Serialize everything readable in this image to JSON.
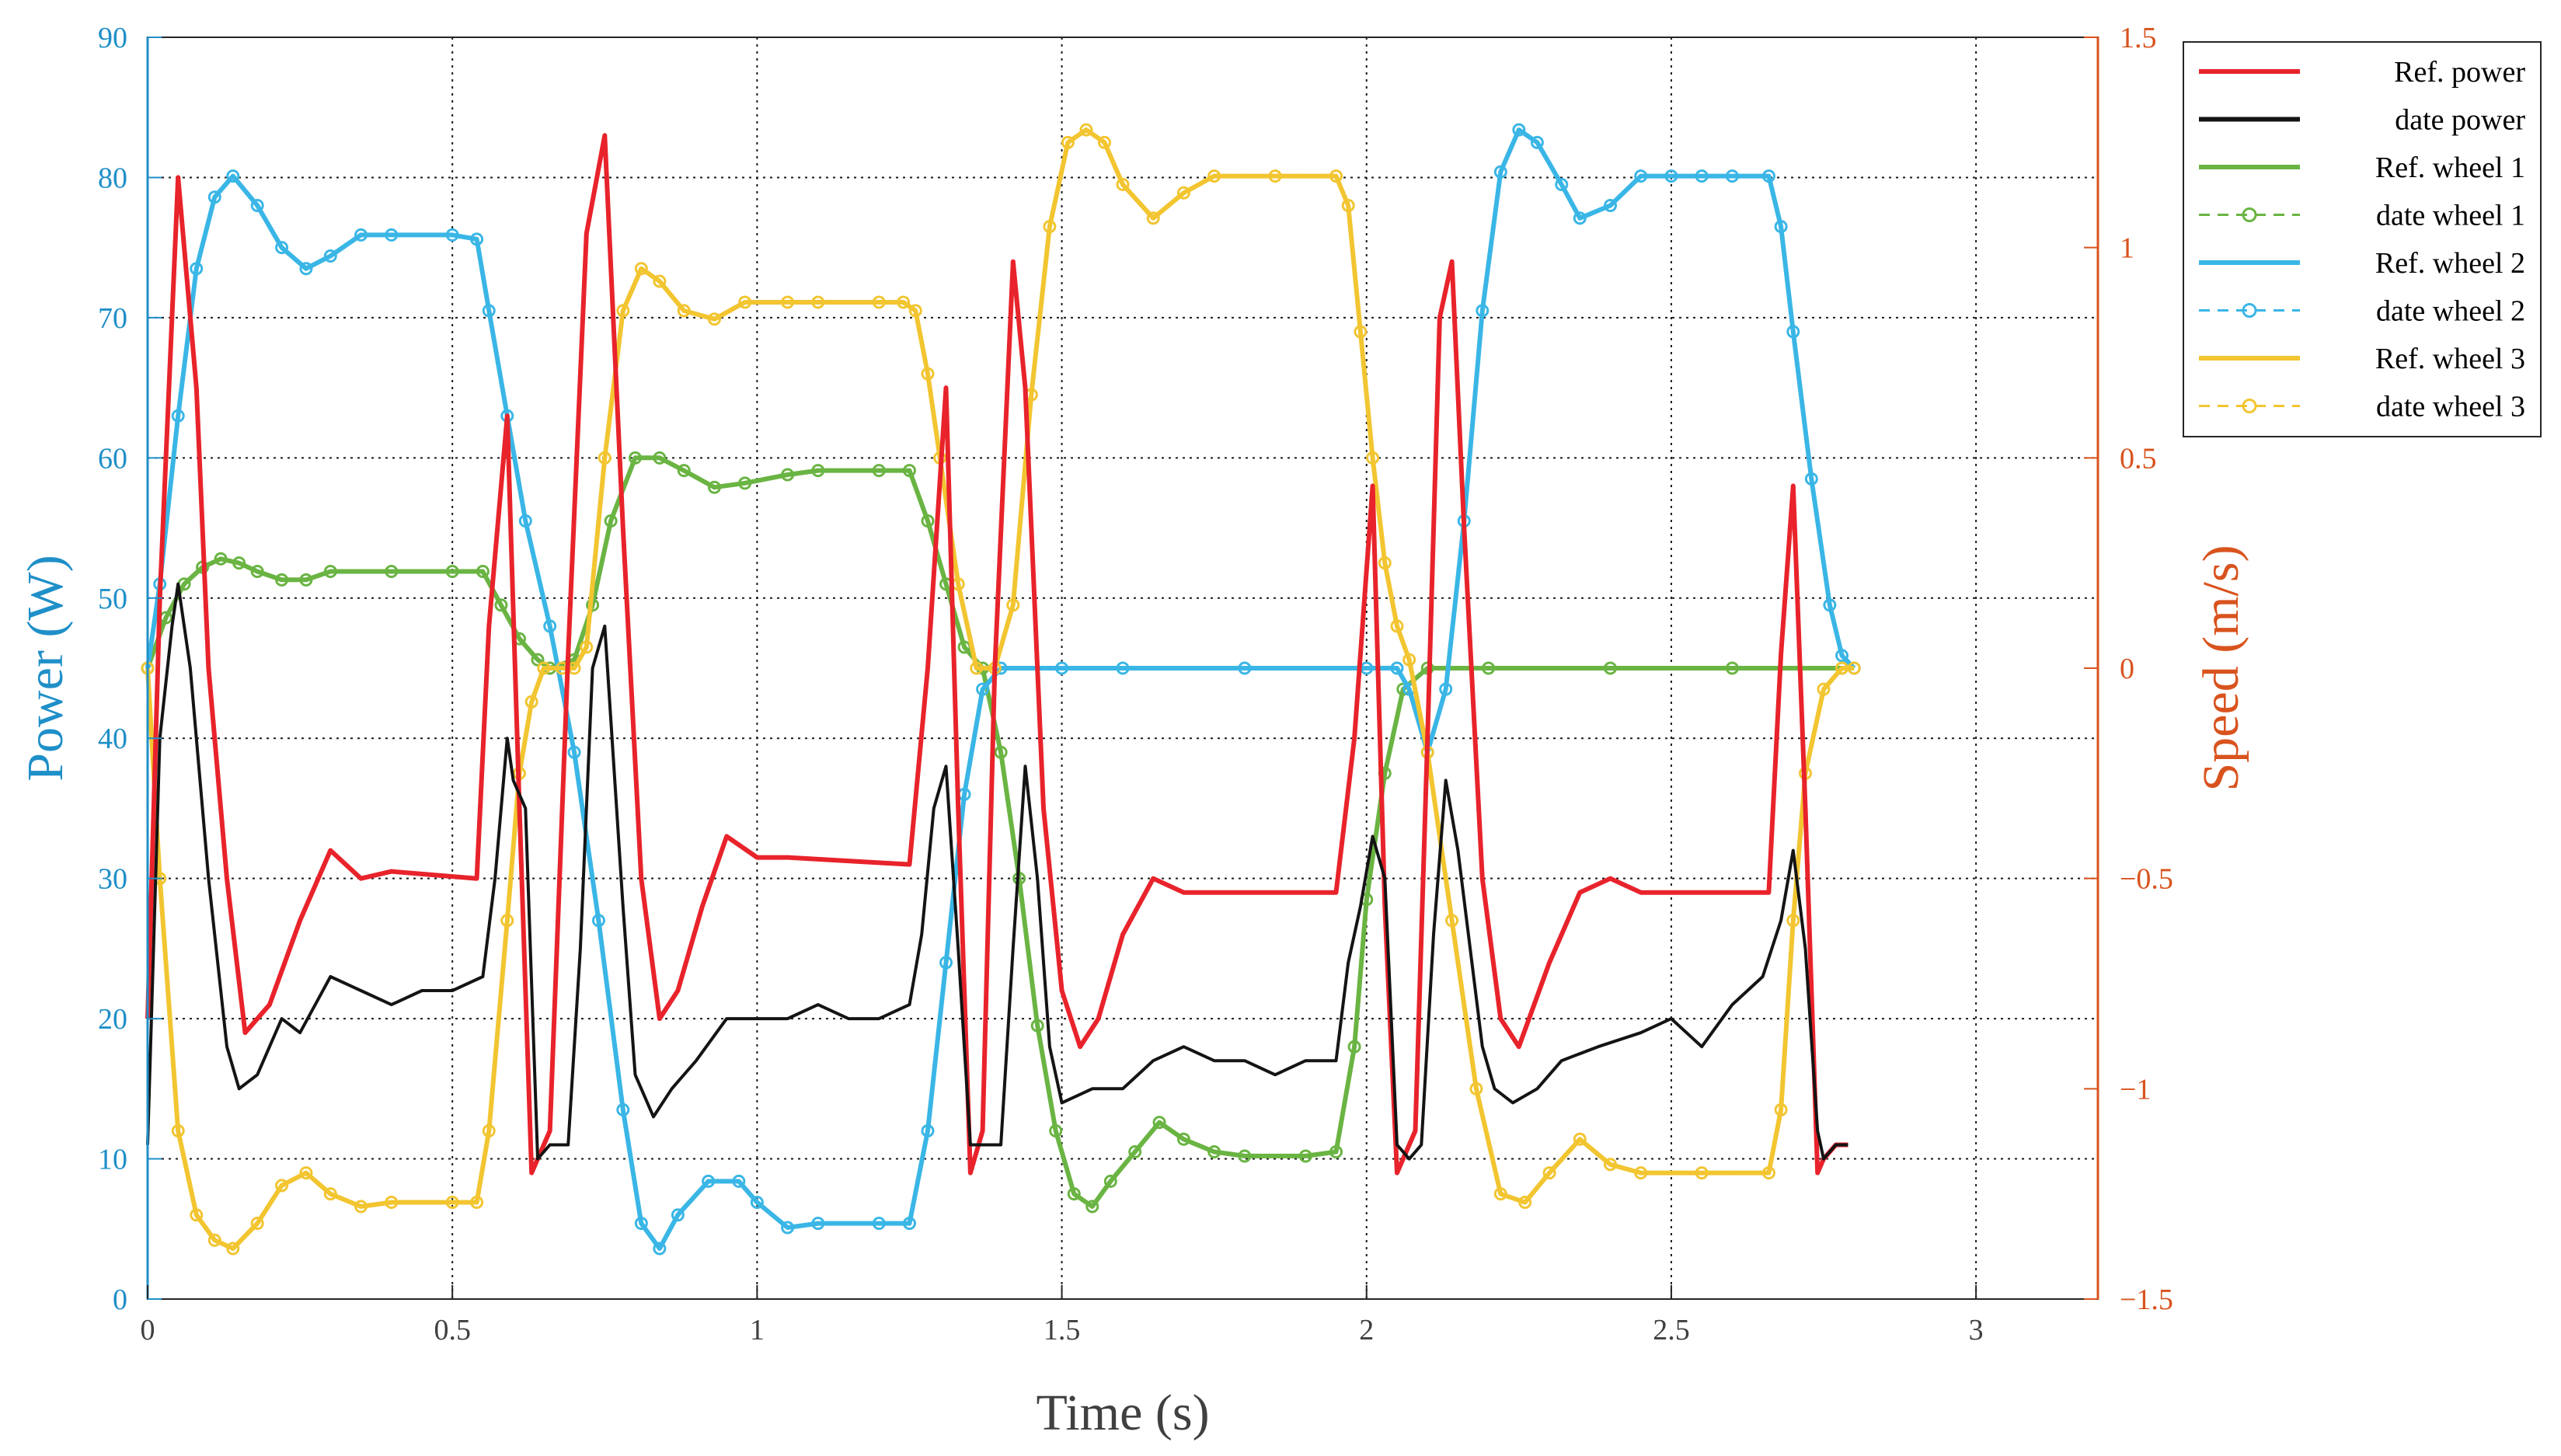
{
  "chart_data": {
    "type": "line",
    "xlabel": "Time (s)",
    "ylabel_left": "Power (W)",
    "ylabel_right": "Speed (m/s)",
    "xlim": [
      0,
      3.2
    ],
    "ylim_left": [
      0,
      90
    ],
    "ylim_right": [
      -1.5,
      1.5
    ],
    "x_ticks": [
      0,
      0.5,
      1,
      1.5,
      2,
      2.5,
      3
    ],
    "x_tick_labels": [
      "0",
      "0.5",
      "1",
      "1.5",
      "2",
      "2.5",
      "3"
    ],
    "y_left_ticks": [
      0,
      10,
      20,
      30,
      40,
      50,
      60,
      70,
      80,
      90
    ],
    "y_left_tick_labels": [
      "0",
      "10",
      "20",
      "30",
      "40",
      "50",
      "60",
      "70",
      "80",
      "90"
    ],
    "y_right_ticks": [
      -1.5,
      -1,
      -0.5,
      0,
      0.5,
      1,
      1.5
    ],
    "y_right_tick_labels": [
      "−1.5",
      "−1",
      "−0.5",
      "0",
      "0.5",
      "1",
      "1.5"
    ],
    "grid": true,
    "legend_position": "top-right",
    "colors": {
      "left_axis": "#1f8fc8",
      "right_axis": "#d9531e",
      "ref_power": "#e8232b",
      "date_power": "#141414",
      "wheel1": "#6ab443",
      "wheel2": "#3ab6e6",
      "wheel3": "#f2c531",
      "grid": "#1a1a1a"
    },
    "series": [
      {
        "name": "Ref. power",
        "axis": "left",
        "style": "solid",
        "color_key": "ref_power",
        "x": [
          0,
          0.02,
          0.05,
          0.08,
          0.1,
          0.13,
          0.16,
          0.2,
          0.25,
          0.3,
          0.35,
          0.4,
          0.54,
          0.56,
          0.59,
          0.61,
          0.63,
          0.66,
          0.69,
          0.72,
          0.75,
          0.78,
          0.81,
          0.84,
          0.87,
          0.91,
          0.95,
          1.0,
          1.05,
          1.25,
          1.28,
          1.31,
          1.33,
          1.35,
          1.37,
          1.39,
          1.42,
          1.44,
          1.47,
          1.5,
          1.53,
          1.56,
          1.6,
          1.65,
          1.7,
          1.77,
          1.95,
          1.98,
          2.01,
          2.03,
          2.05,
          2.06,
          2.08,
          2.1,
          2.12,
          2.14,
          2.16,
          2.19,
          2.22,
          2.25,
          2.3,
          2.35,
          2.4,
          2.45,
          2.5,
          2.66,
          2.68,
          2.7,
          2.72,
          2.74,
          2.75,
          2.77,
          2.79
        ],
        "y": [
          20,
          50,
          80,
          65,
          45,
          30,
          19,
          21,
          27,
          32,
          30,
          30.5,
          30,
          48,
          63,
          35,
          9,
          12,
          46,
          76,
          83,
          55,
          30,
          20,
          22,
          28,
          33,
          31.5,
          31.5,
          31,
          45,
          65,
          35,
          9,
          12,
          45,
          74,
          65,
          35,
          22,
          18,
          20,
          26,
          30,
          29,
          29,
          29,
          40,
          58,
          28,
          9,
          10,
          12,
          40,
          70,
          74,
          55,
          30,
          20,
          18,
          24,
          29,
          30,
          29,
          29,
          29,
          46,
          58,
          35,
          9,
          10,
          11,
          11
        ]
      },
      {
        "name": "date power",
        "axis": "left",
        "style": "solid",
        "color_key": "date_power",
        "x": [
          0,
          0.02,
          0.04,
          0.05,
          0.07,
          0.1,
          0.13,
          0.15,
          0.18,
          0.22,
          0.25,
          0.3,
          0.35,
          0.4,
          0.45,
          0.5,
          0.55,
          0.57,
          0.59,
          0.6,
          0.62,
          0.64,
          0.66,
          0.69,
          0.71,
          0.73,
          0.75,
          0.78,
          0.8,
          0.83,
          0.86,
          0.9,
          0.95,
          1.0,
          1.05,
          1.1,
          1.15,
          1.2,
          1.25,
          1.27,
          1.29,
          1.31,
          1.33,
          1.35,
          1.4,
          1.42,
          1.44,
          1.46,
          1.48,
          1.5,
          1.55,
          1.6,
          1.65,
          1.7,
          1.75,
          1.8,
          1.85,
          1.9,
          1.95,
          1.97,
          1.99,
          2.01,
          2.03,
          2.05,
          2.07,
          2.09,
          2.11,
          2.13,
          2.15,
          2.17,
          2.19,
          2.21,
          2.24,
          2.28,
          2.32,
          2.38,
          2.45,
          2.5,
          2.55,
          2.6,
          2.65,
          2.68,
          2.7,
          2.72,
          2.74,
          2.75,
          2.77,
          2.79
        ],
        "y": [
          11,
          40,
          48,
          51,
          45,
          30,
          18,
          15,
          16,
          20,
          19,
          23,
          22,
          21,
          22,
          22,
          23,
          30,
          40,
          37,
          35,
          10,
          11,
          11,
          25,
          45,
          48,
          28,
          16,
          13,
          15,
          17,
          20,
          20,
          20,
          21,
          20,
          20,
          21,
          26,
          35,
          38,
          25,
          11,
          11,
          25,
          38,
          30,
          18,
          14,
          15,
          15,
          17,
          18,
          17,
          17,
          16,
          17,
          17,
          24,
          28,
          33,
          30,
          11,
          10,
          11,
          26,
          37,
          32,
          25,
          18,
          15,
          14,
          15,
          17,
          18,
          19,
          20,
          18,
          21,
          23,
          27,
          32,
          25,
          12,
          10,
          11,
          11
        ]
      },
      {
        "name": "Ref. wheel 1",
        "axis": "right",
        "style": "solid",
        "color_key": "wheel1",
        "x": [
          0,
          0.03,
          0.06,
          0.09,
          0.12,
          0.15,
          0.18,
          0.22,
          0.26,
          0.3,
          0.4,
          0.5,
          0.55,
          0.58,
          0.61,
          0.64,
          0.66,
          0.7,
          0.73,
          0.76,
          0.8,
          0.84,
          0.88,
          0.93,
          0.98,
          1.05,
          1.1,
          1.2,
          1.25,
          1.28,
          1.31,
          1.34,
          1.37,
          1.4,
          1.43,
          1.46,
          1.49,
          1.52,
          1.55,
          1.58,
          1.62,
          1.66,
          1.7,
          1.75,
          1.8,
          1.9,
          1.95,
          1.98,
          2.0,
          2.03,
          2.06,
          2.1,
          2.2,
          2.4,
          2.6,
          2.78
        ],
        "y": [
          0.0,
          0.12,
          0.2,
          0.24,
          0.26,
          0.25,
          0.23,
          0.21,
          0.21,
          0.23,
          0.23,
          0.23,
          0.23,
          0.15,
          0.07,
          0.02,
          0.0,
          0.02,
          0.15,
          0.35,
          0.5,
          0.5,
          0.47,
          0.43,
          0.44,
          0.46,
          0.47,
          0.47,
          0.47,
          0.35,
          0.2,
          0.05,
          0.0,
          -0.2,
          -0.5,
          -0.85,
          -1.1,
          -1.25,
          -1.28,
          -1.22,
          -1.15,
          -1.08,
          -1.12,
          -1.15,
          -1.16,
          -1.16,
          -1.15,
          -0.9,
          -0.55,
          -0.25,
          -0.05,
          0.0,
          0.0,
          0.0,
          0.0,
          0.0
        ]
      },
      {
        "name": "date wheel 1",
        "axis": "right",
        "style": "dashed-circle",
        "color_key": "wheel1",
        "x": [
          0,
          0.03,
          0.06,
          0.09,
          0.12,
          0.15,
          0.18,
          0.22,
          0.26,
          0.3,
          0.4,
          0.5,
          0.55,
          0.58,
          0.61,
          0.64,
          0.66,
          0.7,
          0.73,
          0.76,
          0.8,
          0.84,
          0.88,
          0.93,
          0.98,
          1.05,
          1.1,
          1.2,
          1.25,
          1.28,
          1.31,
          1.34,
          1.37,
          1.4,
          1.43,
          1.46,
          1.49,
          1.52,
          1.55,
          1.58,
          1.62,
          1.66,
          1.7,
          1.75,
          1.8,
          1.9,
          1.95,
          1.98,
          2.0,
          2.03,
          2.06,
          2.1,
          2.2,
          2.4,
          2.6,
          2.78
        ],
        "y": [
          0.0,
          0.12,
          0.2,
          0.24,
          0.26,
          0.25,
          0.23,
          0.21,
          0.21,
          0.23,
          0.23,
          0.23,
          0.23,
          0.15,
          0.07,
          0.02,
          0.0,
          0.02,
          0.15,
          0.35,
          0.5,
          0.5,
          0.47,
          0.43,
          0.44,
          0.46,
          0.47,
          0.47,
          0.47,
          0.35,
          0.2,
          0.05,
          0.0,
          -0.2,
          -0.5,
          -0.85,
          -1.1,
          -1.25,
          -1.28,
          -1.22,
          -1.15,
          -1.08,
          -1.12,
          -1.15,
          -1.16,
          -1.16,
          -1.15,
          -0.9,
          -0.55,
          -0.25,
          -0.05,
          0.0,
          0.0,
          0.0,
          0.0,
          0.0
        ]
      },
      {
        "name": "Ref. wheel 2",
        "axis": "right",
        "style": "solid",
        "color_key": "wheel2",
        "x": [
          0,
          0.02,
          0.05,
          0.08,
          0.11,
          0.14,
          0.18,
          0.22,
          0.26,
          0.3,
          0.35,
          0.4,
          0.5,
          0.54,
          0.56,
          0.59,
          0.62,
          0.66,
          0.7,
          0.74,
          0.78,
          0.81,
          0.84,
          0.87,
          0.92,
          0.97,
          1.0,
          1.05,
          1.1,
          1.2,
          1.25,
          1.28,
          1.31,
          1.34,
          1.37,
          1.4,
          1.5,
          1.6,
          1.8,
          2.0,
          2.05,
          2.07,
          2.1,
          2.13,
          2.16,
          2.19,
          2.22,
          2.25,
          2.28,
          2.32,
          2.35,
          2.4,
          2.45,
          2.5,
          2.55,
          2.6,
          2.66,
          2.68,
          2.7,
          2.73,
          2.76,
          2.78,
          2.8
        ],
        "y": [
          0.0,
          0.2,
          0.6,
          0.95,
          1.12,
          1.17,
          1.1,
          1.0,
          0.95,
          0.98,
          1.03,
          1.03,
          1.03,
          1.02,
          0.85,
          0.6,
          0.35,
          0.1,
          -0.2,
          -0.6,
          -1.05,
          -1.32,
          -1.38,
          -1.3,
          -1.22,
          -1.22,
          -1.27,
          -1.33,
          -1.32,
          -1.32,
          -1.32,
          -1.1,
          -0.7,
          -0.3,
          -0.05,
          0.0,
          0.0,
          0.0,
          0.0,
          0.0,
          0.0,
          -0.05,
          -0.2,
          -0.05,
          0.35,
          0.85,
          1.18,
          1.28,
          1.25,
          1.15,
          1.07,
          1.1,
          1.17,
          1.17,
          1.17,
          1.17,
          1.17,
          1.05,
          0.8,
          0.45,
          0.15,
          0.03,
          0.0
        ]
      },
      {
        "name": "date wheel 2",
        "axis": "right",
        "style": "dashed-circle",
        "color_key": "wheel2",
        "x": [
          0,
          0.02,
          0.05,
          0.08,
          0.11,
          0.14,
          0.18,
          0.22,
          0.26,
          0.3,
          0.35,
          0.4,
          0.5,
          0.54,
          0.56,
          0.59,
          0.62,
          0.66,
          0.7,
          0.74,
          0.78,
          0.81,
          0.84,
          0.87,
          0.92,
          0.97,
          1.0,
          1.05,
          1.1,
          1.2,
          1.25,
          1.28,
          1.31,
          1.34,
          1.37,
          1.4,
          1.5,
          1.6,
          1.8,
          2.0,
          2.05,
          2.07,
          2.1,
          2.13,
          2.16,
          2.19,
          2.22,
          2.25,
          2.28,
          2.32,
          2.35,
          2.4,
          2.45,
          2.5,
          2.55,
          2.6,
          2.66,
          2.68,
          2.7,
          2.73,
          2.76,
          2.78,
          2.8
        ],
        "y": [
          0.0,
          0.2,
          0.6,
          0.95,
          1.12,
          1.17,
          1.1,
          1.0,
          0.95,
          0.98,
          1.03,
          1.03,
          1.03,
          1.02,
          0.85,
          0.6,
          0.35,
          0.1,
          -0.2,
          -0.6,
          -1.05,
          -1.32,
          -1.38,
          -1.3,
          -1.22,
          -1.22,
          -1.27,
          -1.33,
          -1.32,
          -1.32,
          -1.32,
          -1.1,
          -0.7,
          -0.3,
          -0.05,
          0.0,
          0.0,
          0.0,
          0.0,
          0.0,
          0.0,
          -0.05,
          -0.2,
          -0.05,
          0.35,
          0.85,
          1.18,
          1.28,
          1.25,
          1.15,
          1.07,
          1.1,
          1.17,
          1.17,
          1.17,
          1.17,
          1.17,
          1.05,
          0.8,
          0.45,
          0.15,
          0.03,
          0.0
        ]
      },
      {
        "name": "Ref. wheel 3",
        "axis": "right",
        "style": "solid",
        "color_key": "wheel3",
        "x": [
          0,
          0.02,
          0.05,
          0.08,
          0.11,
          0.14,
          0.18,
          0.22,
          0.26,
          0.3,
          0.35,
          0.4,
          0.5,
          0.54,
          0.56,
          0.59,
          0.61,
          0.63,
          0.65,
          0.68,
          0.7,
          0.72,
          0.75,
          0.78,
          0.81,
          0.84,
          0.88,
          0.93,
          0.98,
          1.05,
          1.1,
          1.2,
          1.24,
          1.26,
          1.28,
          1.3,
          1.33,
          1.36,
          1.39,
          1.42,
          1.45,
          1.48,
          1.51,
          1.54,
          1.57,
          1.6,
          1.65,
          1.7,
          1.75,
          1.85,
          1.95,
          1.97,
          1.99,
          2.01,
          2.03,
          2.05,
          2.07,
          2.1,
          2.14,
          2.18,
          2.22,
          2.26,
          2.3,
          2.35,
          2.4,
          2.45,
          2.55,
          2.66,
          2.68,
          2.7,
          2.72,
          2.75,
          2.78,
          2.8
        ],
        "y": [
          0.0,
          -0.5,
          -1.1,
          -1.3,
          -1.36,
          -1.38,
          -1.32,
          -1.23,
          -1.2,
          -1.25,
          -1.28,
          -1.27,
          -1.27,
          -1.27,
          -1.1,
          -0.6,
          -0.25,
          -0.08,
          0.0,
          0.0,
          0.0,
          0.05,
          0.5,
          0.85,
          0.95,
          0.92,
          0.85,
          0.83,
          0.87,
          0.87,
          0.87,
          0.87,
          0.87,
          0.85,
          0.7,
          0.5,
          0.2,
          0.0,
          0.0,
          0.15,
          0.65,
          1.05,
          1.25,
          1.28,
          1.25,
          1.15,
          1.07,
          1.13,
          1.17,
          1.17,
          1.17,
          1.1,
          0.8,
          0.5,
          0.25,
          0.1,
          0.02,
          -0.2,
          -0.6,
          -1.0,
          -1.25,
          -1.27,
          -1.2,
          -1.12,
          -1.18,
          -1.2,
          -1.2,
          -1.2,
          -1.05,
          -0.6,
          -0.25,
          -0.05,
          0.0,
          0.0
        ]
      },
      {
        "name": "date wheel 3",
        "axis": "right",
        "style": "dashed-circle",
        "color_key": "wheel3",
        "x": [
          0,
          0.02,
          0.05,
          0.08,
          0.11,
          0.14,
          0.18,
          0.22,
          0.26,
          0.3,
          0.35,
          0.4,
          0.5,
          0.54,
          0.56,
          0.59,
          0.61,
          0.63,
          0.65,
          0.68,
          0.7,
          0.72,
          0.75,
          0.78,
          0.81,
          0.84,
          0.88,
          0.93,
          0.98,
          1.05,
          1.1,
          1.2,
          1.24,
          1.26,
          1.28,
          1.3,
          1.33,
          1.36,
          1.39,
          1.42,
          1.45,
          1.48,
          1.51,
          1.54,
          1.57,
          1.6,
          1.65,
          1.7,
          1.75,
          1.85,
          1.95,
          1.97,
          1.99,
          2.01,
          2.03,
          2.05,
          2.07,
          2.1,
          2.14,
          2.18,
          2.22,
          2.26,
          2.3,
          2.35,
          2.4,
          2.45,
          2.55,
          2.66,
          2.68,
          2.7,
          2.72,
          2.75,
          2.78,
          2.8
        ],
        "y": [
          0.0,
          -0.5,
          -1.1,
          -1.3,
          -1.36,
          -1.38,
          -1.32,
          -1.23,
          -1.2,
          -1.25,
          -1.28,
          -1.27,
          -1.27,
          -1.27,
          -1.1,
          -0.6,
          -0.25,
          -0.08,
          0.0,
          0.0,
          0.0,
          0.05,
          0.5,
          0.85,
          0.95,
          0.92,
          0.85,
          0.83,
          0.87,
          0.87,
          0.87,
          0.87,
          0.87,
          0.85,
          0.7,
          0.5,
          0.2,
          0.0,
          0.0,
          0.15,
          0.65,
          1.05,
          1.25,
          1.28,
          1.25,
          1.15,
          1.07,
          1.13,
          1.17,
          1.17,
          1.17,
          1.1,
          0.8,
          0.5,
          0.25,
          0.1,
          0.02,
          -0.2,
          -0.6,
          -1.0,
          -1.25,
          -1.27,
          -1.2,
          -1.12,
          -1.18,
          -1.2,
          -1.2,
          -1.2,
          -1.05,
          -0.6,
          -0.25,
          -0.05,
          0.0,
          0.0
        ]
      }
    ]
  }
}
